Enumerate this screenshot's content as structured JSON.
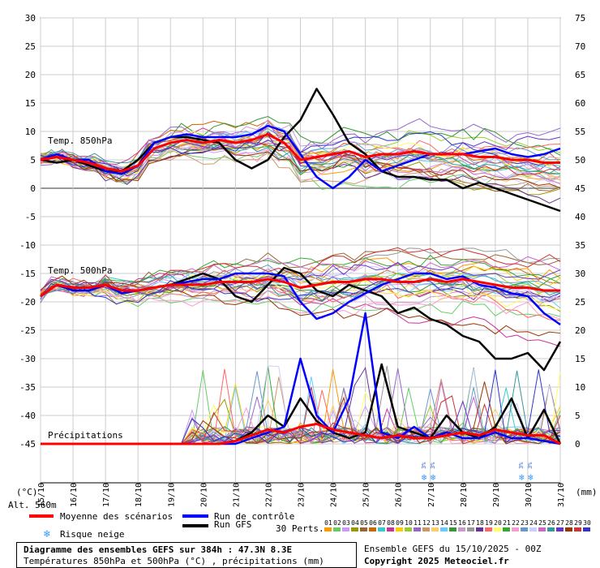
{
  "header": {
    "unit_left": "(°C)",
    "unit_right": "(mm)",
    "altitude": "Alt. 560m"
  },
  "labels": {
    "t850": "Temp. 850hPa",
    "t500": "Temp. 500hPa",
    "precip": "Précipitations"
  },
  "legend": {
    "mean": "Moyenne des scénarios",
    "control": "Run de contrôle",
    "gfs": "Run GFS",
    "snow": "Risque neige",
    "perts": "30 Perts.",
    "snow_icon": "snowflake-icon",
    "colors": {
      "mean": "#ff0000",
      "control": "#0000ff",
      "gfs": "#000000",
      "snow": "#3399ff"
    }
  },
  "footer": {
    "title": "Diagramme des ensembles GEFS sur 384h : 47.3N 8.3E",
    "subtitle": "Températures 850hPa et 500hPa (°C) , précipitations (mm)",
    "run": "Ensemble GEFS du 15/10/2025 - 00Z",
    "copyright": "Copyright 2025 Meteociel.fr"
  },
  "perturbations": {
    "numbers": [
      "01",
      "02",
      "03",
      "04",
      "05",
      "06",
      "07",
      "08",
      "09",
      "10",
      "11",
      "12",
      "13",
      "14",
      "15",
      "16",
      "17",
      "18",
      "19",
      "20",
      "21",
      "22",
      "23",
      "24",
      "25",
      "26",
      "27",
      "28",
      "29",
      "30"
    ],
    "colors": [
      "#ff9900",
      "#66cc66",
      "#cc99ff",
      "#999900",
      "#996633",
      "#cc6600",
      "#33cccc",
      "#cc3399",
      "#ffcc00",
      "#99cc33",
      "#9966cc",
      "#cc9966",
      "#ffcc66",
      "#66ccff",
      "#339933",
      "#cc99cc",
      "#999999",
      "#663399",
      "#ff6666",
      "#ffff66",
      "#33aa33",
      "#ff99cc",
      "#6699cc",
      "#ccccff",
      "#cc66cc",
      "#339999",
      "#6633cc",
      "#993300",
      "#cc3333",
      "#3333cc"
    ]
  },
  "chart_data": {
    "type": "line",
    "x_dates": [
      "15/10",
      "16/10",
      "17/10",
      "18/10",
      "19/10",
      "20/10",
      "21/10",
      "22/10",
      "23/10",
      "24/10",
      "25/10",
      "26/10",
      "27/10",
      "28/10",
      "29/10",
      "30/10",
      "31/10"
    ],
    "xlim_hours": [
      0,
      384
    ],
    "y_left": {
      "range": [
        -45,
        30
      ],
      "ticks": [
        30,
        25,
        20,
        15,
        10,
        5,
        0,
        -5,
        -10,
        -15,
        -20,
        -25,
        -30,
        -35,
        -40,
        -45
      ]
    },
    "y_right": {
      "range": [
        0,
        75
      ],
      "ticks": [
        75,
        70,
        65,
        60,
        55,
        50,
        45,
        40,
        35,
        30,
        25,
        20,
        15,
        10,
        5,
        0
      ]
    },
    "grid": true,
    "snow_risk": [
      {
        "date": "27/10",
        "labels": [
          "3%",
          "3%"
        ]
      },
      {
        "date": "30/10",
        "labels": [
          "3%",
          "3%"
        ]
      }
    ],
    "series": [
      {
        "name": "Moyenne des scénarios",
        "group": "t850",
        "x": [
          0,
          12,
          24,
          36,
          48,
          60,
          72,
          84,
          96,
          108,
          120,
          132,
          144,
          156,
          168,
          180,
          192,
          204,
          216,
          228,
          240,
          252,
          264,
          276,
          288,
          300,
          312,
          324,
          336,
          348,
          360,
          372,
          384
        ],
        "y": [
          5,
          5.5,
          5,
          4.5,
          3.5,
          3,
          4,
          7,
          8,
          8.5,
          8,
          8.5,
          8,
          8.5,
          9.5,
          8,
          5,
          5.5,
          6,
          6.5,
          5.5,
          6,
          6,
          6.5,
          6,
          6,
          6,
          5.5,
          5.5,
          5,
          5,
          4.5,
          4.5
        ]
      },
      {
        "name": "Run de contrôle",
        "group": "t850",
        "x": [
          0,
          12,
          24,
          36,
          48,
          60,
          72,
          84,
          96,
          108,
          120,
          132,
          144,
          156,
          168,
          180,
          192,
          204,
          216,
          228,
          240,
          252,
          264,
          276,
          288,
          300,
          312,
          324,
          336,
          348,
          360,
          372,
          384
        ],
        "y": [
          5,
          6,
          5,
          5,
          3,
          2.5,
          4,
          8,
          9,
          9.5,
          9,
          9,
          9,
          9.5,
          11,
          10,
          6,
          2,
          0,
          2,
          5,
          3,
          4,
          5,
          6,
          6,
          6,
          6.5,
          7,
          6,
          5.5,
          6,
          7
        ]
      },
      {
        "name": "Run GFS",
        "group": "t850",
        "x": [
          0,
          12,
          24,
          36,
          48,
          60,
          72,
          84,
          96,
          108,
          120,
          132,
          144,
          156,
          168,
          180,
          192,
          204,
          216,
          228,
          240,
          252,
          264,
          276,
          288,
          300,
          312,
          324,
          336,
          348,
          360,
          372,
          384
        ],
        "y": [
          5,
          4.5,
          5,
          4,
          3,
          3,
          5,
          8,
          9,
          9,
          8.5,
          8,
          5,
          3.5,
          5,
          9,
          12,
          17.5,
          13,
          8,
          6,
          3,
          2,
          2,
          1.5,
          1.5,
          0,
          1,
          0,
          -1,
          -2,
          -3,
          -4
        ]
      },
      {
        "name": "Moyenne des scénarios",
        "group": "t500",
        "x": [
          0,
          12,
          24,
          36,
          48,
          60,
          72,
          84,
          96,
          108,
          120,
          132,
          144,
          156,
          168,
          180,
          192,
          204,
          216,
          228,
          240,
          252,
          264,
          276,
          288,
          300,
          312,
          324,
          336,
          348,
          360,
          372,
          384
        ],
        "y": [
          -19,
          -17,
          -17.5,
          -17.5,
          -17,
          -18,
          -18,
          -17.5,
          -17,
          -17,
          -17,
          -16.5,
          -16.5,
          -16.5,
          -16,
          -16.5,
          -17.5,
          -17,
          -16.5,
          -16.5,
          -16,
          -16,
          -16.5,
          -16.5,
          -16,
          -16.5,
          -16,
          -16.5,
          -17,
          -17.5,
          -17.5,
          -18,
          -18
        ]
      },
      {
        "name": "Run de contrôle",
        "group": "t500",
        "x": [
          0,
          12,
          24,
          36,
          48,
          60,
          72,
          84,
          96,
          108,
          120,
          132,
          144,
          156,
          168,
          180,
          192,
          204,
          216,
          228,
          240,
          252,
          264,
          276,
          288,
          300,
          312,
          324,
          336,
          348,
          360,
          372,
          384
        ],
        "y": [
          -19,
          -17,
          -18,
          -18,
          -17,
          -18.5,
          -18,
          -17.5,
          -17,
          -16.5,
          -16,
          -16,
          -15,
          -15,
          -15,
          -15.5,
          -20,
          -23,
          -22,
          -20,
          -18.5,
          -17,
          -16,
          -15,
          -15,
          -16,
          -15.5,
          -17,
          -17.5,
          -18.5,
          -19,
          -22,
          -24
        ]
      },
      {
        "name": "Run GFS",
        "group": "t500",
        "x": [
          0,
          12,
          24,
          36,
          48,
          60,
          72,
          84,
          96,
          108,
          120,
          132,
          144,
          156,
          168,
          180,
          192,
          204,
          216,
          228,
          240,
          252,
          264,
          276,
          288,
          300,
          312,
          324,
          336,
          348,
          360,
          372,
          384
        ],
        "y": [
          -19,
          -17,
          -18,
          -18,
          -17,
          -18.5,
          -18,
          -17.5,
          -17,
          -16,
          -15,
          -16,
          -19,
          -20,
          -17,
          -14,
          -15,
          -18,
          -19,
          -17,
          -18,
          -19,
          -22,
          -21,
          -23,
          -24,
          -26,
          -27,
          -30,
          -30,
          -29,
          -32,
          -27
        ]
      },
      {
        "name": "Moyenne des scénarios",
        "group": "precip",
        "x": [
          0,
          24,
          48,
          72,
          96,
          120,
          132,
          144,
          156,
          168,
          180,
          192,
          204,
          216,
          228,
          240,
          252,
          264,
          276,
          288,
          300,
          312,
          324,
          336,
          348,
          360,
          372,
          384
        ],
        "y": [
          0,
          0,
          0,
          0,
          0,
          0,
          0,
          0.5,
          1.5,
          2.5,
          2,
          3,
          3.5,
          2.5,
          2,
          1.5,
          1,
          1.5,
          1,
          1,
          1.5,
          2,
          1.5,
          2.5,
          2,
          1.5,
          1.5,
          0
        ]
      },
      {
        "name": "Run de contrôle",
        "group": "precip",
        "x": [
          0,
          24,
          48,
          72,
          96,
          120,
          132,
          144,
          156,
          168,
          180,
          192,
          204,
          216,
          228,
          240,
          252,
          264,
          276,
          288,
          300,
          312,
          324,
          336,
          348,
          360,
          372,
          384
        ],
        "y": [
          0,
          0,
          0,
          0,
          0,
          0,
          0,
          0,
          1,
          2,
          3,
          15,
          5,
          2,
          8,
          23,
          2,
          1,
          3,
          1,
          2,
          1,
          1,
          2,
          1,
          1,
          0.5,
          0
        ]
      },
      {
        "name": "Run GFS",
        "group": "precip",
        "x": [
          0,
          24,
          48,
          72,
          96,
          120,
          132,
          144,
          156,
          168,
          180,
          192,
          204,
          216,
          228,
          240,
          252,
          264,
          276,
          288,
          300,
          312,
          324,
          336,
          348,
          360,
          372,
          384
        ],
        "y": [
          0,
          0,
          0,
          0,
          0,
          0,
          0,
          0.5,
          2,
          5,
          3,
          8,
          4,
          2,
          1,
          2,
          14,
          3,
          2,
          1,
          5,
          2,
          1,
          3,
          8,
          1,
          6,
          0
        ]
      }
    ]
  }
}
